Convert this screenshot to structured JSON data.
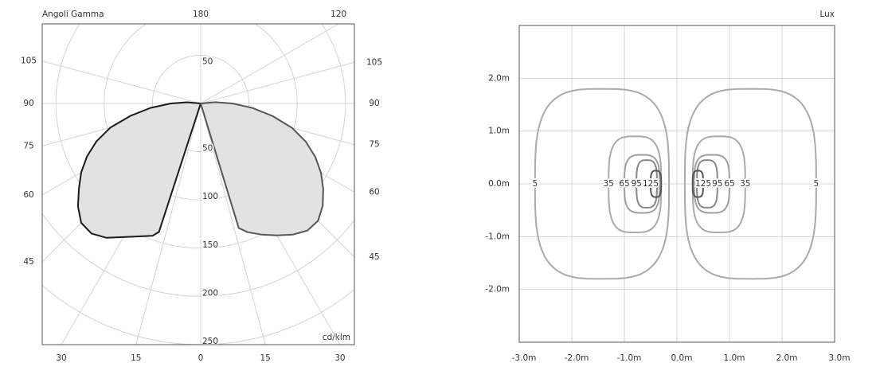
{
  "chart_data": [
    {
      "type": "polar",
      "label": "Angoli Gamma",
      "unit": "cd/klm",
      "rlim": [
        0,
        250
      ],
      "rticks": [
        50,
        100,
        150,
        200,
        250
      ],
      "gamma_ticks_left": [
        0,
        15,
        30,
        45,
        60,
        75,
        90,
        105,
        180
      ],
      "gamma_ticks_right": [
        15,
        30,
        45,
        60,
        75,
        90,
        105,
        120
      ],
      "fill": "#e2e2e2",
      "series": [
        {
          "side": "left",
          "color": "#1a1a1a",
          "gamma": [
            0,
            15,
            18,
            20,
            25,
            30,
            35,
            40,
            45,
            50,
            55,
            60,
            65,
            70,
            75,
            80,
            85,
            90,
            95,
            100
          ],
          "values": [
            0,
            0,
            140,
            146,
            152,
            160,
            170,
            176,
            175,
            166,
            154,
            143,
            130,
            115,
            97,
            74,
            52,
            31,
            14,
            0
          ]
        },
        {
          "side": "right",
          "color": "#555555",
          "gamma": [
            0,
            14,
            17,
            20,
            25,
            30,
            35,
            40,
            45,
            50,
            55,
            60,
            65,
            70,
            75,
            80,
            85,
            90,
            95,
            100
          ],
          "values": [
            0,
            0,
            135,
            142,
            150,
            158,
            166,
            172,
            172,
            165,
            155,
            144,
            131,
            116,
            98,
            76,
            54,
            33,
            15,
            0
          ]
        }
      ]
    },
    {
      "type": "contour",
      "unit": "Lux",
      "xlim": [
        -3,
        3
      ],
      "ylim": [
        -3,
        3
      ],
      "xticks": [
        {
          "value": -3,
          "label": "-3.0m"
        },
        {
          "value": -2,
          "label": "-2.0m"
        },
        {
          "value": -1,
          "label": "-1.0m"
        },
        {
          "value": 0,
          "label": "0.0m"
        },
        {
          "value": 1,
          "label": "1.0m"
        },
        {
          "value": 2,
          "label": "2.0m"
        },
        {
          "value": 3,
          "label": "3.0m"
        }
      ],
      "yticks": [
        {
          "value": -2,
          "label": "-2.0m"
        },
        {
          "value": -1,
          "label": "-1.0m"
        },
        {
          "value": 0,
          "label": "0.0m"
        },
        {
          "value": 1,
          "label": "1.0m"
        },
        {
          "value": 2,
          "label": "2.0m"
        }
      ],
      "grid": true,
      "contours": [
        {
          "level": 5,
          "color": "#aaaaaa",
          "x_range": [
            -2.7,
            -0.15
          ],
          "y_range": [
            -1.8,
            1.8
          ]
        },
        {
          "level": 35,
          "color": "#aaaaaa",
          "x_range": [
            -1.3,
            -0.3
          ],
          "y_range": [
            -0.92,
            0.9
          ]
        },
        {
          "level": 65,
          "color": "#a0a0a0",
          "x_range": [
            -1.0,
            -0.33
          ],
          "y_range": [
            -0.55,
            0.55
          ]
        },
        {
          "level": 95,
          "color": "#888888",
          "x_range": [
            -0.77,
            -0.38
          ],
          "y_range": [
            -0.45,
            0.45
          ]
        },
        {
          "level": 125,
          "color": "#555555",
          "x_range": [
            -0.5,
            -0.3
          ],
          "y_range": [
            -0.25,
            0.25
          ]
        },
        {
          "level": 5,
          "color": "#aaaaaa",
          "x_range": [
            0.15,
            2.65
          ],
          "y_range": [
            -1.8,
            1.8
          ]
        },
        {
          "level": 35,
          "color": "#aaaaaa",
          "x_range": [
            0.3,
            1.3
          ],
          "y_range": [
            -0.92,
            0.9
          ]
        },
        {
          "level": 65,
          "color": "#a0a0a0",
          "x_range": [
            0.33,
            1.0
          ],
          "y_range": [
            -0.55,
            0.55
          ]
        },
        {
          "level": 95,
          "color": "#888888",
          "x_range": [
            0.38,
            0.77
          ],
          "y_range": [
            -0.45,
            0.45
          ]
        },
        {
          "level": 125,
          "color": "#555555",
          "x_range": [
            0.3,
            0.5
          ],
          "y_range": [
            -0.25,
            0.25
          ]
        }
      ]
    }
  ]
}
